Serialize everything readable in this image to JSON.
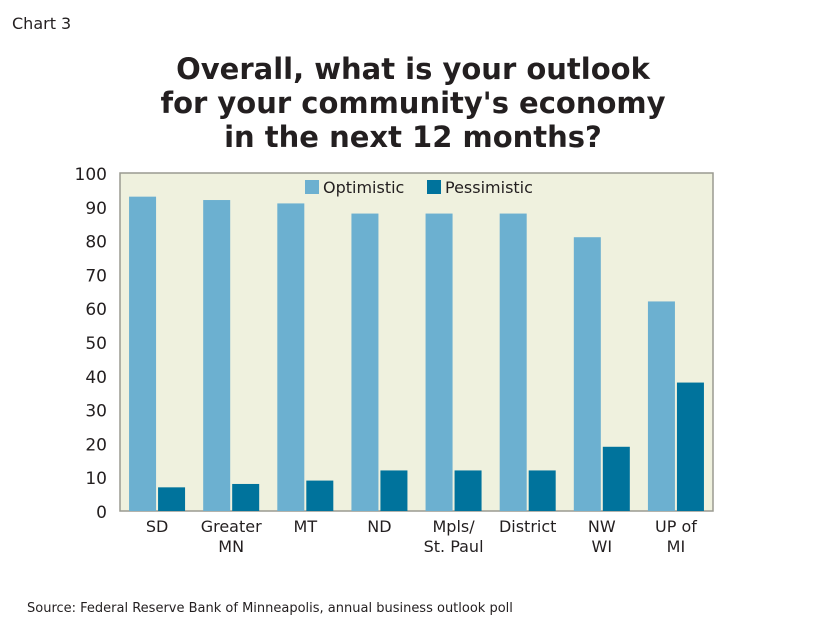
{
  "chart_label": "Chart 3",
  "chart_data": {
    "type": "bar",
    "title": "Overall, what is your outlook for your community's economy in the next 12 months?",
    "title_lines": [
      "Overall, what is your outlook",
      "for your community's economy",
      "in the next 12 months?"
    ],
    "categories": [
      [
        "SD"
      ],
      [
        "Greater",
        "MN"
      ],
      [
        "MT"
      ],
      [
        "ND"
      ],
      [
        "Mpls/",
        "St. Paul"
      ],
      [
        "District"
      ],
      [
        "NW",
        "WI"
      ],
      [
        "UP of",
        "MI"
      ]
    ],
    "series": [
      {
        "name": "Optimistic",
        "color": "#6cb0d0",
        "values": [
          93,
          92,
          91,
          88,
          88,
          88,
          81,
          62
        ]
      },
      {
        "name": "Pessimistic",
        "color": "#00739c",
        "values": [
          7,
          8,
          9,
          12,
          12,
          12,
          19,
          38
        ]
      }
    ],
    "ylim": [
      0,
      100
    ],
    "yticks": [
      0,
      10,
      20,
      30,
      40,
      50,
      60,
      70,
      80,
      90,
      100
    ],
    "xlabel": "",
    "ylabel": "",
    "legend": "top-center",
    "plot_background": "#eff1de"
  },
  "source": "Source: Federal Reserve Bank of Minneapolis, annual business outlook poll"
}
